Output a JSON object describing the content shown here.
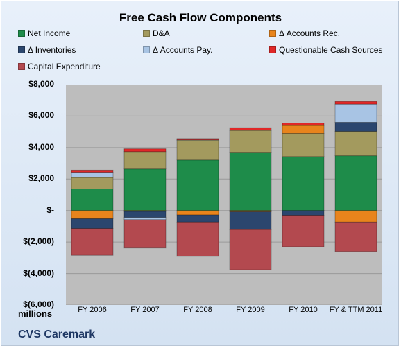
{
  "chart_data": {
    "type": "bar",
    "stacked": true,
    "title": "Free Cash Flow Components",
    "units_label": "millions",
    "company": "CVS Caremark",
    "categories": [
      "FY 2006",
      "FY 2007",
      "FY 2008",
      "FY 2009",
      "FY 2010",
      "FY & TTM 2011"
    ],
    "yticks": [
      "$8,000",
      "$6,000",
      "$4,000",
      "$2,000",
      "$-",
      "$(2,000)",
      "$(4,000)",
      "$(6,000)"
    ],
    "ylim": [
      -6000,
      8000
    ],
    "grid": true,
    "legend_position": "top",
    "series": [
      {
        "name": "Net Income",
        "color": "#1e8c4a",
        "values": [
          1370,
          2640,
          3210,
          3700,
          3430,
          3480
        ]
      },
      {
        "name": "D&A",
        "color": "#a39a5e",
        "values": [
          730,
          1100,
          1270,
          1390,
          1470,
          1550
        ]
      },
      {
        "name": "Δ Accounts Rec.",
        "color": "#e8841c",
        "values": [
          -520,
          -60,
          -280,
          -80,
          500,
          -730
        ]
      },
      {
        "name": "Δ Inventories",
        "color": "#2b466e",
        "values": [
          -620,
          -380,
          -450,
          -1130,
          -300,
          570
        ]
      },
      {
        "name": "Δ Accounts Pay.",
        "color": "#a8c4e4",
        "values": [
          330,
          -140,
          10,
          0,
          0,
          1160
        ]
      },
      {
        "name": "Questionable Cash Sources",
        "color": "#e02828",
        "values": [
          140,
          180,
          80,
          170,
          160,
          170
        ]
      },
      {
        "name": "Capital Expenditure",
        "color": "#b3494f",
        "values": [
          -1700,
          -1800,
          -2180,
          -2550,
          -2000,
          -1870
        ]
      }
    ]
  }
}
